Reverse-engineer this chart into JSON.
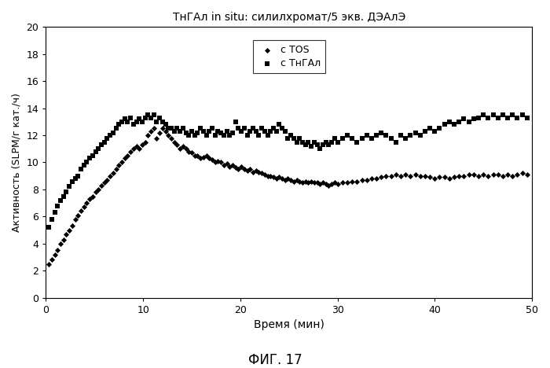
{
  "title": "ТнГАл in situ: силилхромат/5 экв. ДЭАлЭ",
  "xlabel": "Время (мин)",
  "ylabel": "Активность (SLPM/г кат./ч)",
  "xlim": [
    0,
    50
  ],
  "ylim": [
    0,
    20
  ],
  "xticks": [
    0,
    10,
    20,
    30,
    40,
    50
  ],
  "yticks": [
    0,
    2,
    4,
    6,
    8,
    10,
    12,
    14,
    16,
    18,
    20
  ],
  "legend_labels": [
    "с TOS",
    "с ТнГАл"
  ],
  "caption": "ФИГ. 17",
  "tos_x": [
    0.3,
    0.6,
    0.9,
    1.2,
    1.5,
    1.8,
    2.1,
    2.4,
    2.7,
    3.0,
    3.3,
    3.6,
    3.9,
    4.2,
    4.5,
    4.8,
    5.1,
    5.4,
    5.7,
    6.0,
    6.3,
    6.6,
    6.9,
    7.2,
    7.5,
    7.8,
    8.1,
    8.4,
    8.7,
    9.0,
    9.3,
    9.6,
    9.9,
    10.2,
    10.5,
    10.8,
    11.1,
    11.4,
    11.7,
    12.0,
    12.3,
    12.6,
    12.9,
    13.2,
    13.5,
    13.8,
    14.1,
    14.4,
    14.7,
    15.0,
    15.3,
    15.6,
    15.9,
    16.2,
    16.5,
    16.8,
    17.1,
    17.4,
    17.7,
    18.0,
    18.3,
    18.6,
    18.9,
    19.2,
    19.5,
    19.8,
    20.1,
    20.4,
    20.7,
    21.0,
    21.3,
    21.6,
    21.9,
    22.2,
    22.5,
    22.8,
    23.1,
    23.4,
    23.7,
    24.0,
    24.3,
    24.6,
    24.9,
    25.2,
    25.5,
    25.8,
    26.1,
    26.4,
    26.7,
    27.0,
    27.3,
    27.6,
    27.9,
    28.2,
    28.5,
    28.8,
    29.1,
    29.4,
    29.7,
    30.0,
    30.5,
    31.0,
    31.5,
    32.0,
    32.5,
    33.0,
    33.5,
    34.0,
    34.5,
    35.0,
    35.5,
    36.0,
    36.5,
    37.0,
    37.5,
    38.0,
    38.5,
    39.0,
    39.5,
    40.0,
    40.5,
    41.0,
    41.5,
    42.0,
    42.5,
    43.0,
    43.5,
    44.0,
    44.5,
    45.0,
    45.5,
    46.0,
    46.5,
    47.0,
    47.5,
    48.0,
    48.5,
    49.0,
    49.5
  ],
  "tos_y": [
    2.5,
    2.8,
    3.2,
    3.5,
    4.0,
    4.3,
    4.7,
    5.0,
    5.3,
    5.8,
    6.1,
    6.4,
    6.7,
    7.0,
    7.3,
    7.5,
    7.8,
    8.0,
    8.3,
    8.5,
    8.7,
    9.0,
    9.2,
    9.5,
    9.8,
    10.0,
    10.3,
    10.5,
    10.8,
    11.0,
    11.2,
    11.0,
    11.3,
    11.5,
    12.0,
    12.3,
    12.5,
    11.8,
    12.2,
    12.5,
    12.3,
    12.0,
    11.8,
    11.5,
    11.3,
    11.0,
    11.2,
    11.0,
    10.8,
    10.7,
    10.5,
    10.5,
    10.3,
    10.4,
    10.5,
    10.3,
    10.2,
    10.0,
    10.1,
    10.0,
    9.8,
    9.9,
    9.7,
    9.8,
    9.6,
    9.5,
    9.7,
    9.5,
    9.4,
    9.5,
    9.3,
    9.4,
    9.3,
    9.2,
    9.1,
    9.0,
    9.0,
    8.9,
    8.8,
    8.9,
    8.8,
    8.7,
    8.8,
    8.7,
    8.6,
    8.7,
    8.6,
    8.5,
    8.6,
    8.5,
    8.6,
    8.5,
    8.5,
    8.4,
    8.5,
    8.4,
    8.3,
    8.4,
    8.5,
    8.4,
    8.5,
    8.5,
    8.6,
    8.6,
    8.7,
    8.7,
    8.8,
    8.8,
    8.9,
    9.0,
    9.0,
    9.1,
    9.0,
    9.1,
    9.0,
    9.1,
    9.0,
    9.0,
    8.9,
    8.8,
    8.9,
    8.9,
    8.8,
    8.9,
    9.0,
    9.0,
    9.1,
    9.1,
    9.0,
    9.1,
    9.0,
    9.1,
    9.1,
    9.0,
    9.1,
    9.0,
    9.1,
    9.2,
    9.1
  ],
  "tngal_x": [
    0.3,
    0.6,
    0.9,
    1.2,
    1.5,
    1.8,
    2.1,
    2.4,
    2.7,
    3.0,
    3.3,
    3.6,
    3.9,
    4.2,
    4.5,
    4.8,
    5.1,
    5.4,
    5.7,
    6.0,
    6.3,
    6.6,
    6.9,
    7.2,
    7.5,
    7.8,
    8.1,
    8.4,
    8.7,
    9.0,
    9.3,
    9.6,
    9.9,
    10.2,
    10.5,
    10.8,
    11.1,
    11.4,
    11.7,
    12.0,
    12.3,
    12.6,
    12.9,
    13.2,
    13.5,
    13.8,
    14.1,
    14.4,
    14.7,
    15.0,
    15.3,
    15.6,
    15.9,
    16.2,
    16.5,
    16.8,
    17.1,
    17.4,
    17.7,
    18.0,
    18.3,
    18.6,
    18.9,
    19.2,
    19.5,
    19.8,
    20.1,
    20.4,
    20.7,
    21.0,
    21.3,
    21.6,
    21.9,
    22.2,
    22.5,
    22.8,
    23.1,
    23.4,
    23.7,
    24.0,
    24.3,
    24.6,
    24.9,
    25.2,
    25.5,
    25.8,
    26.1,
    26.4,
    26.7,
    27.0,
    27.3,
    27.6,
    27.9,
    28.2,
    28.5,
    28.8,
    29.1,
    29.4,
    29.7,
    30.0,
    30.5,
    31.0,
    31.5,
    32.0,
    32.5,
    33.0,
    33.5,
    34.0,
    34.5,
    35.0,
    35.5,
    36.0,
    36.5,
    37.0,
    37.5,
    38.0,
    38.5,
    39.0,
    39.5,
    40.0,
    40.5,
    41.0,
    41.5,
    42.0,
    42.5,
    43.0,
    43.5,
    44.0,
    44.5,
    45.0,
    45.5,
    46.0,
    46.5,
    47.0,
    47.5,
    48.0,
    48.5,
    49.0,
    49.5
  ],
  "tngal_y": [
    5.2,
    5.8,
    6.3,
    6.8,
    7.2,
    7.5,
    7.8,
    8.2,
    8.6,
    8.8,
    9.0,
    9.5,
    9.8,
    10.0,
    10.3,
    10.5,
    10.8,
    11.0,
    11.3,
    11.5,
    11.8,
    12.0,
    12.2,
    12.5,
    12.8,
    13.0,
    13.2,
    13.0,
    13.3,
    12.8,
    13.0,
    13.2,
    13.0,
    13.3,
    13.5,
    13.3,
    13.5,
    13.0,
    13.3,
    13.0,
    12.8,
    12.5,
    12.5,
    12.3,
    12.5,
    12.3,
    12.5,
    12.2,
    12.0,
    12.3,
    12.0,
    12.2,
    12.5,
    12.3,
    12.0,
    12.3,
    12.5,
    12.0,
    12.3,
    12.2,
    12.0,
    12.3,
    12.0,
    12.2,
    13.0,
    12.5,
    12.3,
    12.5,
    12.0,
    12.3,
    12.5,
    12.3,
    12.0,
    12.5,
    12.3,
    12.0,
    12.3,
    12.5,
    12.3,
    12.8,
    12.5,
    12.3,
    11.8,
    12.0,
    11.8,
    11.5,
    11.8,
    11.5,
    11.3,
    11.5,
    11.2,
    11.5,
    11.3,
    11.0,
    11.3,
    11.5,
    11.3,
    11.5,
    11.8,
    11.5,
    11.8,
    12.0,
    11.8,
    11.5,
    11.8,
    12.0,
    11.8,
    12.0,
    12.2,
    12.0,
    11.8,
    11.5,
    12.0,
    11.8,
    12.0,
    12.2,
    12.0,
    12.3,
    12.5,
    12.3,
    12.5,
    12.8,
    13.0,
    12.8,
    13.0,
    13.2,
    13.0,
    13.2,
    13.3,
    13.5,
    13.3,
    13.5,
    13.3,
    13.5,
    13.3,
    13.5,
    13.3,
    13.5,
    13.3
  ],
  "bg_color": "#ffffff",
  "marker_color": "#000000",
  "marker_size_diamond": 13,
  "marker_size_square": 18
}
